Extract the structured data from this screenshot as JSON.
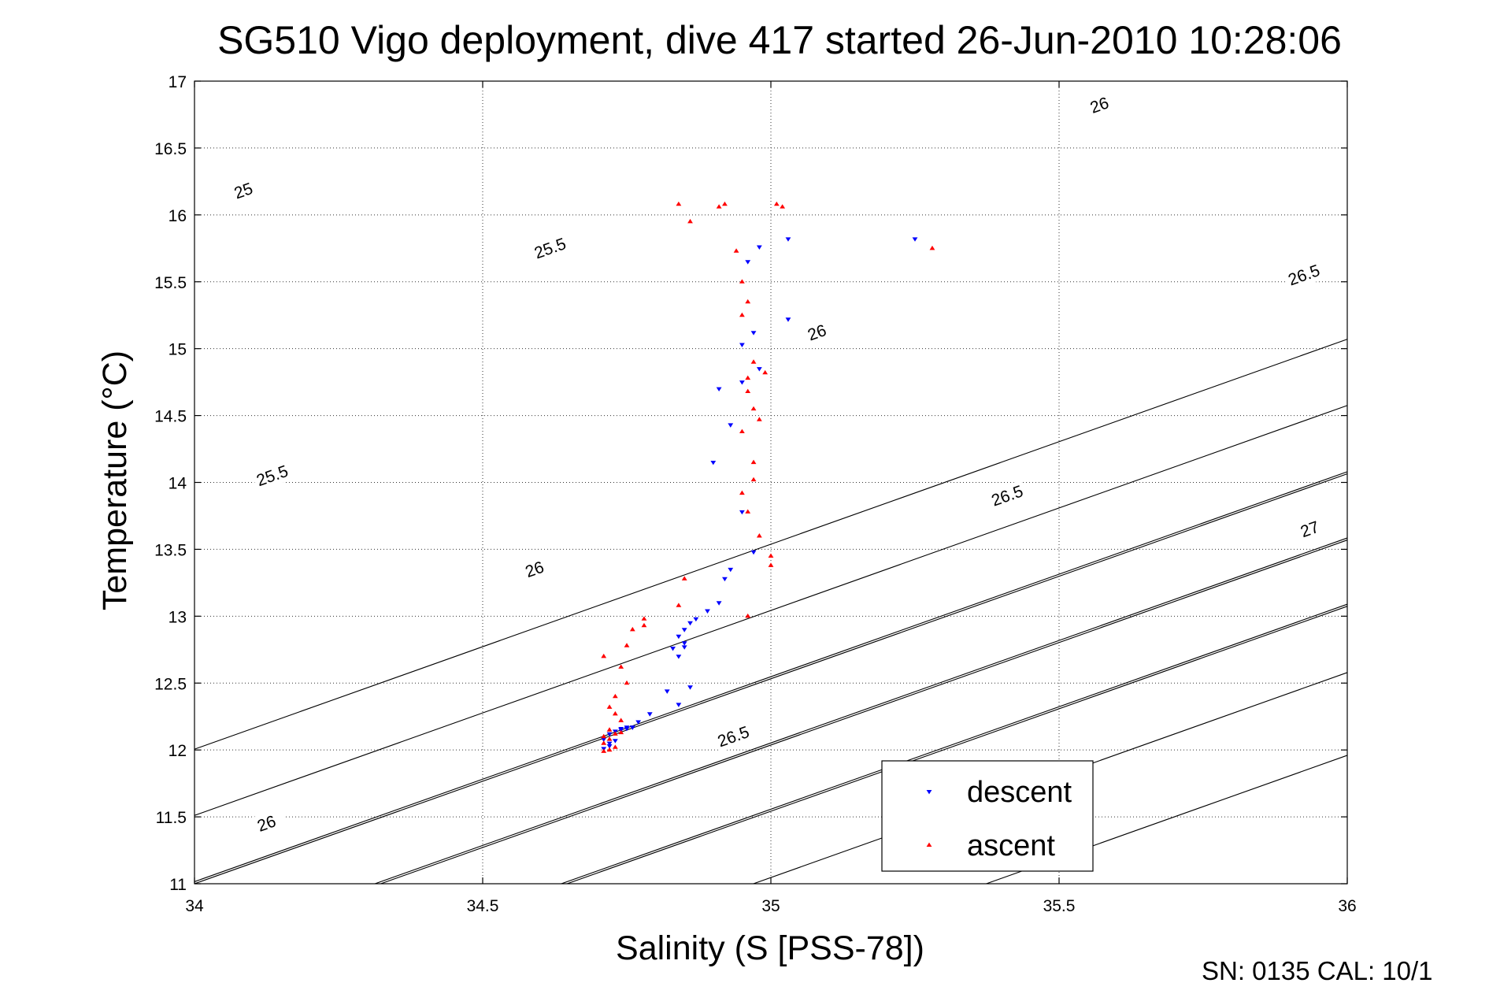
{
  "chart_data": {
    "type": "scatter",
    "title": "SG510 Vigo deployment, dive 417 started 26-Jun-2010 10:28:06",
    "xlabel": "Salinity (S [PSS-78])",
    "ylabel": "Temperature (°C)",
    "xlim": [
      34,
      36
    ],
    "ylim": [
      11,
      17
    ],
    "x_ticks": [
      "34",
      "34.5",
      "35",
      "35.5",
      "36"
    ],
    "y_ticks": [
      "11",
      "11.5",
      "12",
      "12.5",
      "13",
      "13.5",
      "14",
      "14.5",
      "15",
      "15.5",
      "16",
      "16.5",
      "17"
    ],
    "grid": true,
    "legend_position": "bottom-right",
    "density_contours": [
      {
        "level": 25,
        "label": "25",
        "x0": 34.0,
        "slope": 1.5323,
        "label_at": [
          34.08,
          16.05
        ]
      },
      {
        "level": 25.5,
        "label": "25.5",
        "x0": 34.3232,
        "slope": 1.5323,
        "label_at": [
          34.62,
          15.85
        ]
      },
      {
        "level": 26,
        "label": "26",
        "x0": 34.6464,
        "slope": 1.5323,
        "label_at": [
          35.57,
          16.8
        ]
      },
      {
        "level": 26.5,
        "label": "26.5",
        "x0": 34.9697,
        "slope": 1.5323,
        "label_at": [
          35.93,
          15.45
        ]
      },
      {
        "level": 27,
        "label": "27",
        "x0": 35.3737,
        "slope": 1.5323,
        "label_at": [
          35.95,
          13.6
        ]
      },
      {
        "level": 25.5,
        "label": "25.5",
        "x0": 33.3435,
        "slope": 1.5323,
        "label_at": [
          34.12,
          14.0
        ]
      },
      {
        "level": 26,
        "label": "26",
        "x0": 33.6667,
        "slope": 1.5323,
        "label_at": [
          34.1,
          11.48
        ]
      },
      {
        "level": 26.5,
        "label": "26.5",
        "x0": 33.9899,
        "slope": 1.5323,
        "label_at": [
          34.93,
          14.8
        ]
      },
      {
        "level": 26.5,
        "label": "26.5",
        "x0": 34.3131,
        "slope": 1.5323,
        "label_at": [
          34.94,
          14.8
        ]
      },
      {
        "level": 27,
        "label": "27",
        "x0": 34.6364,
        "slope": 1.5323,
        "label_at": [
          34.58,
          13.3
        ]
      }
    ],
    "contour_label_points": [
      {
        "label": "25",
        "x": 34.085,
        "y": 16.18
      },
      {
        "label": "25.5",
        "x": 34.617,
        "y": 15.75
      },
      {
        "label": "26",
        "x": 35.57,
        "y": 16.82
      },
      {
        "label": "26.5",
        "x": 35.925,
        "y": 15.55
      },
      {
        "label": "26",
        "x": 35.08,
        "y": 15.12
      },
      {
        "label": "25.5",
        "x": 34.135,
        "y": 14.05
      },
      {
        "label": "26.5",
        "x": 35.41,
        "y": 13.9
      },
      {
        "label": "26",
        "x": 34.59,
        "y": 13.35
      },
      {
        "label": "27",
        "x": 35.935,
        "y": 13.65
      },
      {
        "label": "26.5",
        "x": 34.935,
        "y": 12.1
      },
      {
        "label": "26",
        "x": 34.125,
        "y": 11.45
      }
    ],
    "series": [
      {
        "name": "descent",
        "color": "#0000ff",
        "marker": "triangle-down",
        "x": [
          35.25,
          34.98,
          35.03,
          34.96,
          35.03,
          34.97,
          34.95,
          34.98,
          34.95,
          34.91,
          34.93,
          34.9,
          34.95,
          34.97,
          34.93,
          34.92,
          34.91,
          34.89,
          34.87,
          34.86,
          34.85,
          34.84,
          34.85,
          34.83,
          34.85,
          34.84,
          34.86,
          34.82,
          34.84,
          34.79,
          34.77,
          34.76,
          34.75,
          34.74,
          34.73,
          34.72,
          34.71,
          34.72,
          34.73,
          34.72,
          34.71,
          34.74,
          34.75,
          34.76
        ],
        "y": [
          15.82,
          15.76,
          15.82,
          15.65,
          15.22,
          15.12,
          15.03,
          14.85,
          14.75,
          14.7,
          14.43,
          14.15,
          13.78,
          13.48,
          13.35,
          13.28,
          13.1,
          13.04,
          12.98,
          12.95,
          12.9,
          12.85,
          12.8,
          12.76,
          12.77,
          12.7,
          12.47,
          12.44,
          12.34,
          12.27,
          12.21,
          12.17,
          12.17,
          12.16,
          12.14,
          12.12,
          12.08,
          12.05,
          12.07,
          12.03,
          12.01,
          12.15,
          12.16,
          12.17
        ]
      },
      {
        "name": "ascent",
        "color": "#ff0000",
        "marker": "triangle-up",
        "x": [
          34.84,
          34.86,
          34.91,
          34.92,
          35.01,
          35.02,
          35.28,
          34.94,
          34.95,
          34.96,
          34.95,
          34.97,
          34.96,
          34.99,
          34.96,
          34.97,
          34.98,
          34.95,
          34.97,
          34.97,
          34.95,
          34.96,
          34.98,
          35.0,
          35.0,
          34.85,
          34.84,
          34.96,
          34.78,
          34.78,
          34.76,
          34.75,
          34.71,
          34.74,
          34.75,
          34.73,
          34.72,
          34.73,
          34.74,
          34.72,
          34.71,
          34.73,
          34.72,
          34.71,
          34.74,
          34.73,
          34.72,
          34.71
        ],
        "y": [
          16.08,
          15.95,
          16.06,
          16.08,
          16.08,
          16.06,
          15.75,
          15.73,
          15.5,
          15.35,
          15.25,
          14.9,
          14.78,
          14.82,
          14.68,
          14.55,
          14.47,
          14.38,
          14.15,
          14.02,
          13.92,
          13.78,
          13.6,
          13.45,
          13.38,
          13.28,
          13.08,
          13.0,
          12.98,
          12.93,
          12.9,
          12.78,
          12.7,
          12.62,
          12.5,
          12.4,
          12.32,
          12.27,
          12.22,
          12.15,
          12.1,
          12.12,
          12.08,
          12.05,
          12.13,
          12.02,
          12.0,
          11.99
        ]
      }
    ],
    "footer_text": "SN: 0135  CAL: 10/1"
  }
}
